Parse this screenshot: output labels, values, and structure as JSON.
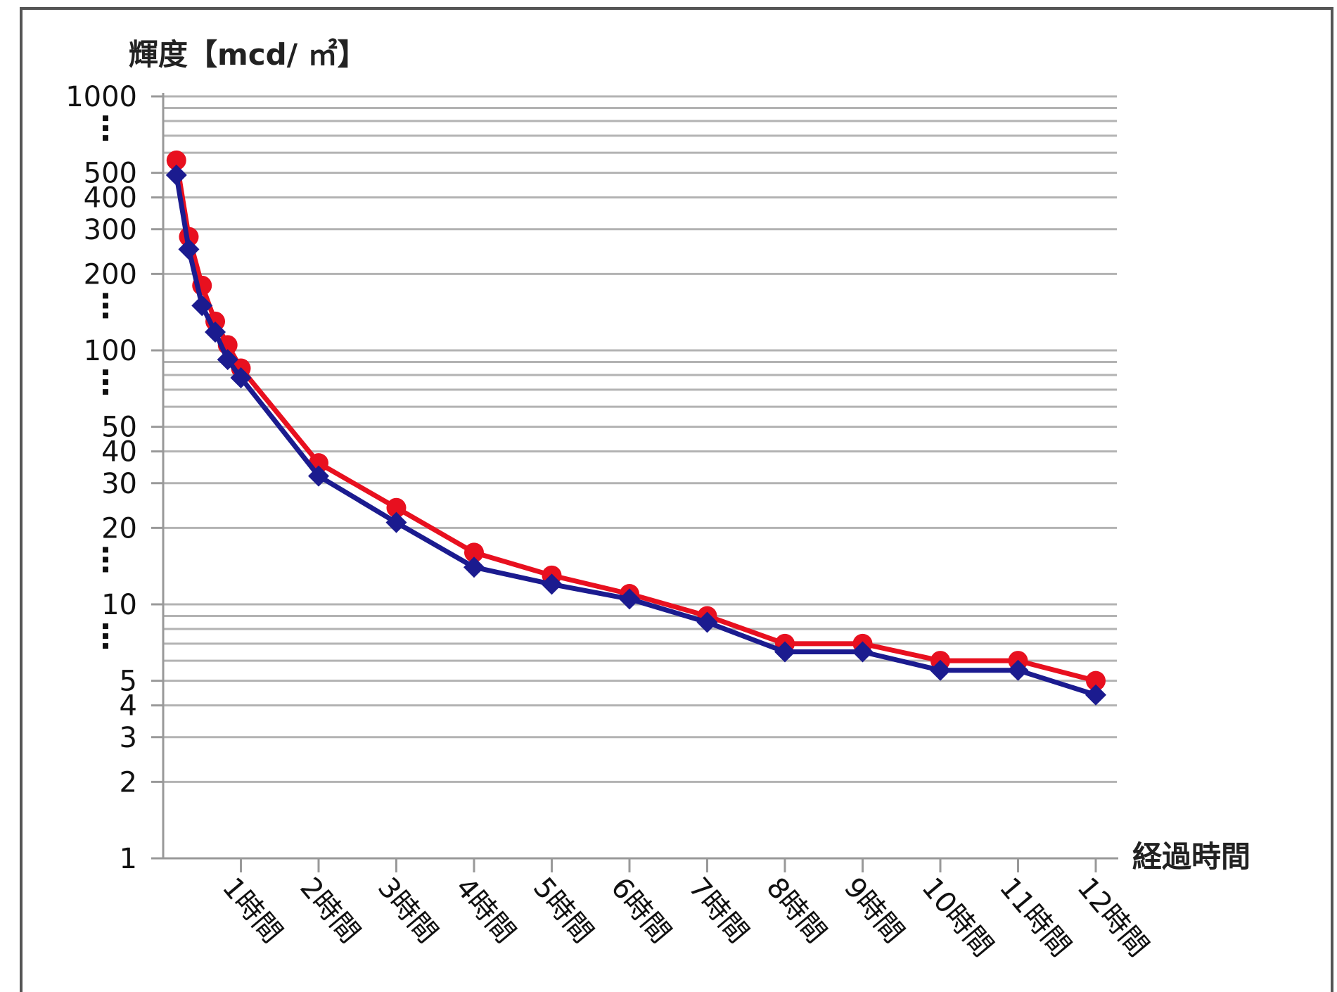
{
  "chart_data": {
    "type": "line",
    "ylabel": "輝度【mcd/ ㎡】",
    "xlabel": "経過時間",
    "y_scale": "log",
    "ylim": [
      1,
      1000
    ],
    "xlim": [
      0,
      12.3
    ],
    "grid": true,
    "y_tick_labels": [
      {
        "value": 1000,
        "label": "1000"
      },
      {
        "value": 500,
        "label": "500"
      },
      {
        "value": 400,
        "label": "400"
      },
      {
        "value": 300,
        "label": "300"
      },
      {
        "value": 200,
        "label": "200"
      },
      {
        "value": 100,
        "label": "100"
      },
      {
        "value": 50,
        "label": "50"
      },
      {
        "value": 40,
        "label": "40"
      },
      {
        "value": 30,
        "label": "30"
      },
      {
        "value": 20,
        "label": "20"
      },
      {
        "value": 10,
        "label": "10"
      },
      {
        "value": 5,
        "label": "5"
      },
      {
        "value": 4,
        "label": "4"
      },
      {
        "value": 3,
        "label": "3"
      },
      {
        "value": 2,
        "label": "2"
      },
      {
        "value": 1,
        "label": "1"
      }
    ],
    "y_gridlines": [
      1000,
      900,
      800,
      700,
      600,
      500,
      400,
      300,
      200,
      100,
      90,
      80,
      70,
      60,
      50,
      40,
      30,
      20,
      10,
      9,
      8,
      7,
      6,
      5,
      4,
      3,
      2
    ],
    "y_dot_breaks": [
      750,
      150,
      75,
      15,
      7.5
    ],
    "x_ticks": [
      {
        "value": 1,
        "label": "1時間"
      },
      {
        "value": 2,
        "label": "2時間"
      },
      {
        "value": 3,
        "label": "3時間"
      },
      {
        "value": 4,
        "label": "4時間"
      },
      {
        "value": 5,
        "label": "5時間"
      },
      {
        "value": 6,
        "label": "6時間"
      },
      {
        "value": 7,
        "label": "7時間"
      },
      {
        "value": 8,
        "label": "8時間"
      },
      {
        "value": 9,
        "label": "9時間"
      },
      {
        "value": 10,
        "label": "10時間"
      },
      {
        "value": 11,
        "label": "11時間"
      },
      {
        "value": 12,
        "label": "12時間"
      }
    ],
    "series": [
      {
        "color": "#e8101f",
        "marker": "circle",
        "points": [
          {
            "x": 0.17,
            "y": 560
          },
          {
            "x": 0.33,
            "y": 280
          },
          {
            "x": 0.5,
            "y": 180
          },
          {
            "x": 0.67,
            "y": 130
          },
          {
            "x": 0.83,
            "y": 105
          },
          {
            "x": 1,
            "y": 85
          },
          {
            "x": 2,
            "y": 36
          },
          {
            "x": 3,
            "y": 24
          },
          {
            "x": 4,
            "y": 16
          },
          {
            "x": 5,
            "y": 13
          },
          {
            "x": 6,
            "y": 11
          },
          {
            "x": 7,
            "y": 9
          },
          {
            "x": 8,
            "y": 7
          },
          {
            "x": 9,
            "y": 7
          },
          {
            "x": 10,
            "y": 6
          },
          {
            "x": 11,
            "y": 6
          },
          {
            "x": 12,
            "y": 5
          }
        ]
      },
      {
        "color": "#1b1b8f",
        "marker": "diamond",
        "points": [
          {
            "x": 0.17,
            "y": 490
          },
          {
            "x": 0.33,
            "y": 250
          },
          {
            "x": 0.5,
            "y": 150
          },
          {
            "x": 0.67,
            "y": 118
          },
          {
            "x": 0.83,
            "y": 92
          },
          {
            "x": 1,
            "y": 78
          },
          {
            "x": 2,
            "y": 32
          },
          {
            "x": 3,
            "y": 21
          },
          {
            "x": 4,
            "y": 14
          },
          {
            "x": 5,
            "y": 12
          },
          {
            "x": 6,
            "y": 10.5
          },
          {
            "x": 7,
            "y": 8.5
          },
          {
            "x": 8,
            "y": 6.5
          },
          {
            "x": 9,
            "y": 6.5
          },
          {
            "x": 10,
            "y": 5.5
          },
          {
            "x": 11,
            "y": 5.5
          },
          {
            "x": 12,
            "y": 4.4
          }
        ]
      }
    ]
  }
}
